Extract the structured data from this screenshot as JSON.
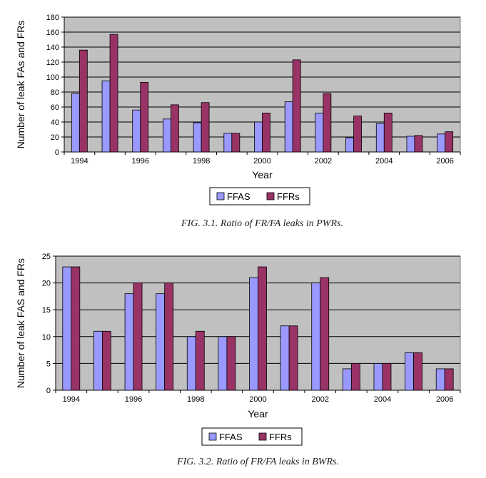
{
  "chart_data": [
    {
      "type": "bar",
      "title": "",
      "caption": "FIG. 3.1.  Ratio of FR/FA leaks in PWRs.",
      "xlabel": "Year",
      "ylabel": "Number of leak FAs and FRs",
      "ylim": [
        0,
        180
      ],
      "yticks": [
        0,
        20,
        40,
        60,
        80,
        100,
        120,
        140,
        160,
        180
      ],
      "categories": [
        "1994",
        "1995",
        "1996",
        "1997",
        "1998",
        "1999",
        "2000",
        "2001",
        "2002",
        "2003",
        "2004",
        "2005",
        "2006"
      ],
      "xtick_labels": [
        "1994",
        "",
        "1996",
        "",
        "1998",
        "",
        "2000",
        "",
        "2002",
        "",
        "2004",
        "",
        "2006"
      ],
      "series": [
        {
          "name": "FFAS",
          "color": "#9999ff",
          "values": [
            78,
            95,
            56,
            44,
            39,
            25,
            40,
            67,
            52,
            19,
            38,
            21,
            24
          ]
        },
        {
          "name": "FFRs",
          "color": "#993366",
          "values": [
            136,
            157,
            93,
            63,
            66,
            25,
            52,
            123,
            78,
            48,
            52,
            22,
            27
          ]
        }
      ],
      "grid": true,
      "plot_background": "#c0c0c0",
      "legend": "bottom"
    },
    {
      "type": "bar",
      "title": "",
      "caption": "FIG. 3.2.  Ratio of FR/FA leaks in BWRs.",
      "xlabel": "Year",
      "ylabel": "Number of leak FAS and FRs",
      "ylim": [
        0,
        25
      ],
      "yticks": [
        0,
        5,
        10,
        15,
        20,
        25
      ],
      "categories": [
        "1994",
        "1995",
        "1996",
        "1997",
        "1998",
        "1999",
        "2000",
        "2001",
        "2002",
        "2003",
        "2004",
        "2005",
        "2006"
      ],
      "xtick_labels": [
        "1994",
        "",
        "1996",
        "",
        "1998",
        "",
        "2000",
        "",
        "2002",
        "",
        "2004",
        "",
        "2006"
      ],
      "series": [
        {
          "name": "FFAS",
          "color": "#9999ff",
          "values": [
            23,
            11,
            18,
            18,
            10,
            10,
            21,
            12,
            20,
            4,
            5,
            7,
            4
          ]
        },
        {
          "name": "FFRs",
          "color": "#993366",
          "values": [
            23,
            11,
            20,
            20,
            11,
            10,
            23,
            12,
            21,
            5,
            5,
            7,
            4
          ]
        }
      ],
      "grid": true,
      "plot_background": "#c0c0c0",
      "legend": "bottom"
    }
  ]
}
